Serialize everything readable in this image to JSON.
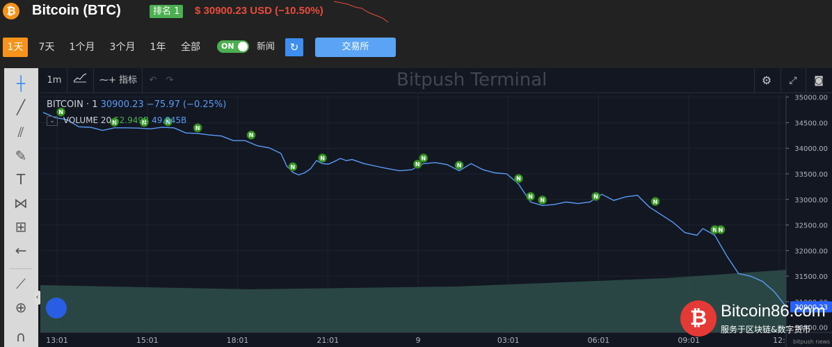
{
  "header": {
    "coin_title": "Bitcoin (BTC)",
    "rank_label": "排名 1",
    "price_text": "$ 30900.23 USD (−10.50%)",
    "coin_icon": "bitcoin-icon",
    "price_color": "#e74c3c"
  },
  "toolbar": {
    "timeframes": [
      "1天",
      "7天",
      "1个月",
      "3个月",
      "1年",
      "全部"
    ],
    "active_timeframe": "1天",
    "toggle_label": "ON",
    "news_label": "新闻",
    "refresh_icon": "refresh-icon",
    "exchange_button": "交易所",
    "accent": "#f7931a"
  },
  "terminal": {
    "watermark": "Bitpush Terminal",
    "interval": "1m",
    "indicators_label": "指标",
    "symbol": "BITCOIN · 1",
    "legend_values": "30900.23  −75.97 (−0.25%)",
    "volume_label": "VOLUME 20",
    "volume_value_1": "52.949B",
    "volume_value_2": "49.845B",
    "left_tools": [
      "crosshair-icon",
      "trend-line-icon",
      "fib-icon",
      "brush-icon",
      "text-icon",
      "pattern-icon",
      "measure-icon",
      "back-arrow-icon",
      "ruler-icon",
      "zoom-in-icon",
      "magnet-icon"
    ],
    "top_icons": [
      "settings-icon",
      "fullscreen-icon",
      "camera-icon"
    ]
  },
  "chart_data": {
    "type": "line",
    "title": "",
    "xlabel": "",
    "ylabel": "",
    "x_tick_labels": [
      "13:01",
      "15:01",
      "18:01",
      "21:01",
      "9",
      "03:01",
      "06:01",
      "09:01",
      "12:"
    ],
    "y_tick_labels": [
      "35000.00",
      "34500.00",
      "34000.00",
      "33500.00",
      "33000.00",
      "32500.00",
      "32000.00",
      "31500.00",
      "31000.00",
      "30500.00"
    ],
    "ylim": [
      30400,
      35050
    ],
    "last_price_label": "30900.23",
    "series": [
      {
        "points": [
          [
            0,
            34700
          ],
          [
            2,
            34600
          ],
          [
            4,
            34560
          ],
          [
            6,
            34420
          ],
          [
            8,
            34410
          ],
          [
            10,
            34350
          ],
          [
            12,
            34400
          ],
          [
            14,
            34400
          ],
          [
            16,
            34395
          ],
          [
            18,
            34380
          ],
          [
            20,
            34410
          ],
          [
            22,
            34400
          ],
          [
            24,
            34300
          ],
          [
            26,
            34290
          ],
          [
            28,
            34260
          ],
          [
            30,
            34240
          ],
          [
            32,
            34150
          ],
          [
            34,
            34150
          ],
          [
            36,
            34050
          ],
          [
            38,
            34010
          ],
          [
            40,
            33900
          ],
          [
            41,
            33650
          ],
          [
            42,
            33530
          ],
          [
            43,
            33480
          ],
          [
            44,
            33520
          ],
          [
            45,
            33600
          ],
          [
            46,
            33760
          ],
          [
            47,
            33700
          ],
          [
            48,
            33690
          ],
          [
            49,
            33740
          ],
          [
            50,
            33800
          ],
          [
            51,
            33760
          ],
          [
            52,
            33780
          ],
          [
            54,
            33700
          ],
          [
            56,
            33650
          ],
          [
            58,
            33600
          ],
          [
            60,
            33560
          ],
          [
            62,
            33580
          ],
          [
            64,
            33700
          ],
          [
            66,
            33720
          ],
          [
            68,
            33680
          ],
          [
            70,
            33560
          ],
          [
            72,
            33700
          ],
          [
            74,
            33580
          ],
          [
            76,
            33520
          ],
          [
            78,
            33500
          ],
          [
            80,
            33300
          ],
          [
            82,
            32950
          ],
          [
            84,
            32880
          ],
          [
            86,
            32900
          ],
          [
            88,
            32950
          ],
          [
            90,
            32920
          ],
          [
            92,
            32950
          ],
          [
            94,
            33100
          ],
          [
            96,
            32980
          ],
          [
            98,
            33050
          ],
          [
            100,
            33080
          ],
          [
            102,
            32850
          ],
          [
            104,
            32700
          ],
          [
            106,
            32550
          ],
          [
            108,
            32350
          ],
          [
            110,
            32300
          ],
          [
            111,
            32430
          ],
          [
            113,
            32300
          ],
          [
            115,
            31900
          ],
          [
            117,
            31550
          ],
          [
            119,
            31500
          ],
          [
            121,
            31400
          ],
          [
            123,
            31200
          ],
          [
            125,
            30900
          ]
        ]
      }
    ],
    "volume_level": 0.55,
    "news_markers": [
      {
        "x": 3,
        "label": "N"
      },
      {
        "x": 12,
        "label": "N"
      },
      {
        "x": 17,
        "label": "N"
      },
      {
        "x": 21,
        "label": "N"
      },
      {
        "x": 26,
        "label": "N"
      },
      {
        "x": 35,
        "label": "N"
      },
      {
        "x": 42,
        "label": "N"
      },
      {
        "x": 47,
        "label": "N"
      },
      {
        "x": 63,
        "label": "N"
      },
      {
        "x": 64,
        "label": "N"
      },
      {
        "x": 70,
        "label": "N"
      },
      {
        "x": 80,
        "label": "N"
      },
      {
        "x": 82,
        "label": "N"
      },
      {
        "x": 84,
        "label": "N"
      },
      {
        "x": 93,
        "label": "N"
      },
      {
        "x": 103,
        "label": "N"
      },
      {
        "x": 113,
        "label": "N"
      },
      {
        "x": 114,
        "label": "N"
      }
    ],
    "line_color": "#5b9cf6",
    "volume_color": "#2f4f4a"
  },
  "brand": {
    "name": "Bitcoin86.com",
    "slogan": "服务于区块链&数字货币",
    "footer_mark": "bitpush news"
  }
}
